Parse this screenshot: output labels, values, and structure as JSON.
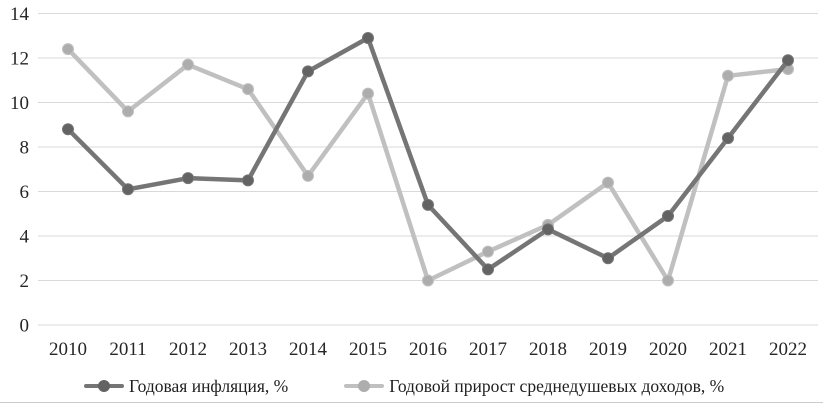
{
  "chart_data": {
    "type": "line",
    "title": "",
    "xlabel": "",
    "ylabel": "",
    "categories": [
      "2010",
      "2011",
      "2012",
      "2013",
      "2014",
      "2015",
      "2016",
      "2017",
      "2018",
      "2019",
      "2020",
      "2021",
      "2022"
    ],
    "series": [
      {
        "name": "Годовая инфляция, %",
        "values": [
          8.8,
          6.1,
          6.6,
          6.5,
          11.4,
          12.9,
          5.4,
          2.5,
          4.3,
          3.0,
          4.9,
          8.4,
          11.9
        ],
        "line_color": "#757575",
        "marker_color": "#636363"
      },
      {
        "name": "Годовой прирост среднедушевых доходов, %",
        "values": [
          12.4,
          9.6,
          11.7,
          10.6,
          6.7,
          10.4,
          2.0,
          3.3,
          4.5,
          6.4,
          2.0,
          11.2,
          11.5
        ],
        "line_color": "#c0c0c0",
        "marker_color": "#adadad"
      }
    ],
    "ylim": [
      0,
      14
    ],
    "yticks": [
      0,
      2,
      4,
      6,
      8,
      10,
      12,
      14
    ],
    "grid": "horizontal",
    "grid_color": "#d9d9d9",
    "axis_text_color": "#262626",
    "legend_position": "bottom"
  }
}
